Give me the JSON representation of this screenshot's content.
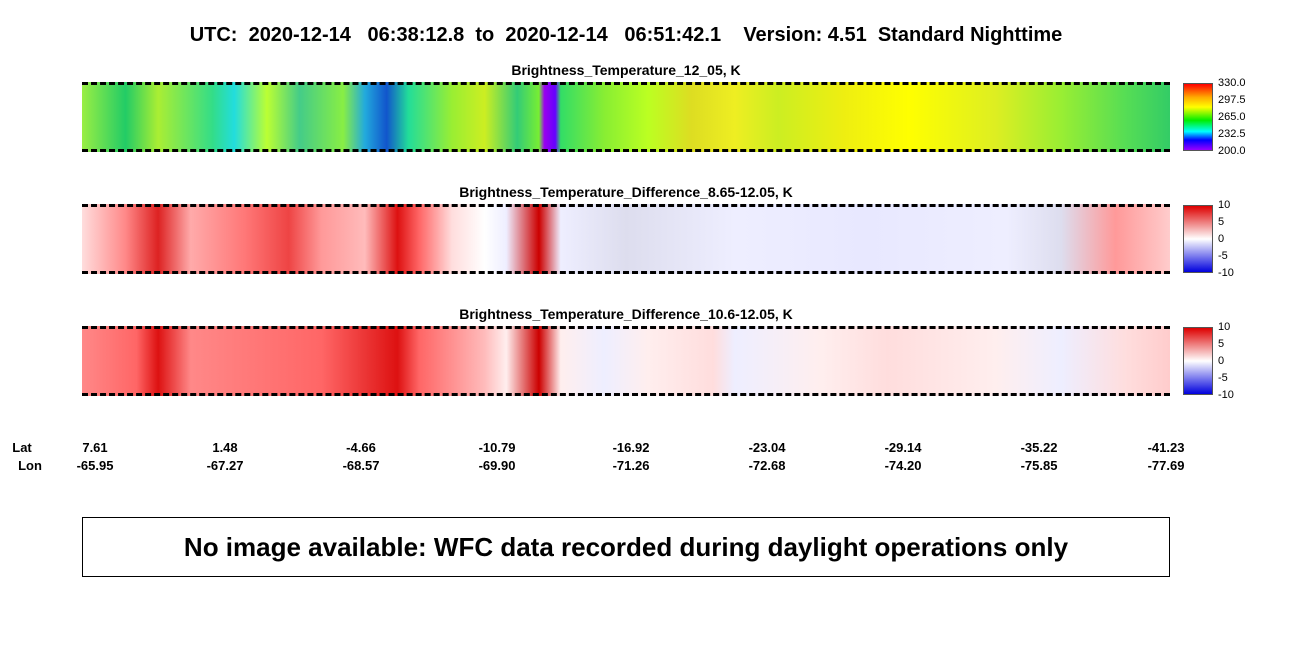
{
  "header": {
    "title": "UTC:  2020-12-14   06:38:12.8  to  2020-12-14   06:51:42.1    Version: 4.51  Standard Nighttime"
  },
  "panels": [
    {
      "title": "Brightness_Temperature_12_05, K",
      "colorbar_ticks": [
        "330.0",
        "297.5",
        "265.0",
        "232.5",
        "200.0"
      ]
    },
    {
      "title": "Brightness_Temperature_Difference_8.65-12.05, K",
      "colorbar_ticks": [
        "10",
        "5",
        "0",
        "-5",
        "-10"
      ]
    },
    {
      "title": "Brightness_Temperature_Difference_10.6-12.05, K",
      "colorbar_ticks": [
        "10",
        "5",
        "0",
        "-5",
        "-10"
      ]
    }
  ],
  "axis": {
    "lat_label": "Lat",
    "lon_label": "Lon",
    "lat": [
      "7.61",
      "1.48",
      "-4.66",
      "-10.79",
      "-16.92",
      "-23.04",
      "-29.14",
      "-35.22",
      "-41.23"
    ],
    "lon": [
      "-65.95",
      "-67.27",
      "-68.57",
      "-69.90",
      "-71.26",
      "-72.68",
      "-74.20",
      "-75.85",
      "-77.69"
    ]
  },
  "message": "No image available: WFC data recorded during daylight operations only"
}
